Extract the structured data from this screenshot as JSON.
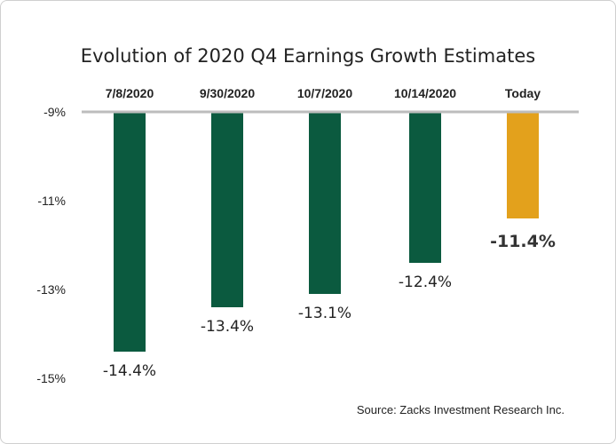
{
  "chart_data": {
    "type": "bar",
    "title": "Evolution of 2020 Q4 Earnings Growth Estimates",
    "categories": [
      "7/8/2020",
      "9/30/2020",
      "10/7/2020",
      "10/14/2020",
      "Today"
    ],
    "values": [
      -14.4,
      -13.4,
      -13.1,
      -12.4,
      -11.4
    ],
    "data_labels": [
      "-14.4%",
      "-13.4%",
      "-13.1%",
      "-12.4%",
      "-11.4%"
    ],
    "y_ticks": [
      -9,
      -11,
      -13,
      -15
    ],
    "y_tick_labels": [
      "-9%",
      "-11%",
      "-13%",
      "-15%"
    ],
    "ylim": [
      -15,
      -9
    ],
    "y_inverted": true,
    "category_axis_position": "top",
    "grid": false,
    "colors": {
      "bar": "#0b5a3f",
      "highlight": "#e3a11c",
      "axis": "#bdbdbd"
    },
    "highlight_index": 4,
    "source": "Source: Zacks Investment Research Inc."
  }
}
